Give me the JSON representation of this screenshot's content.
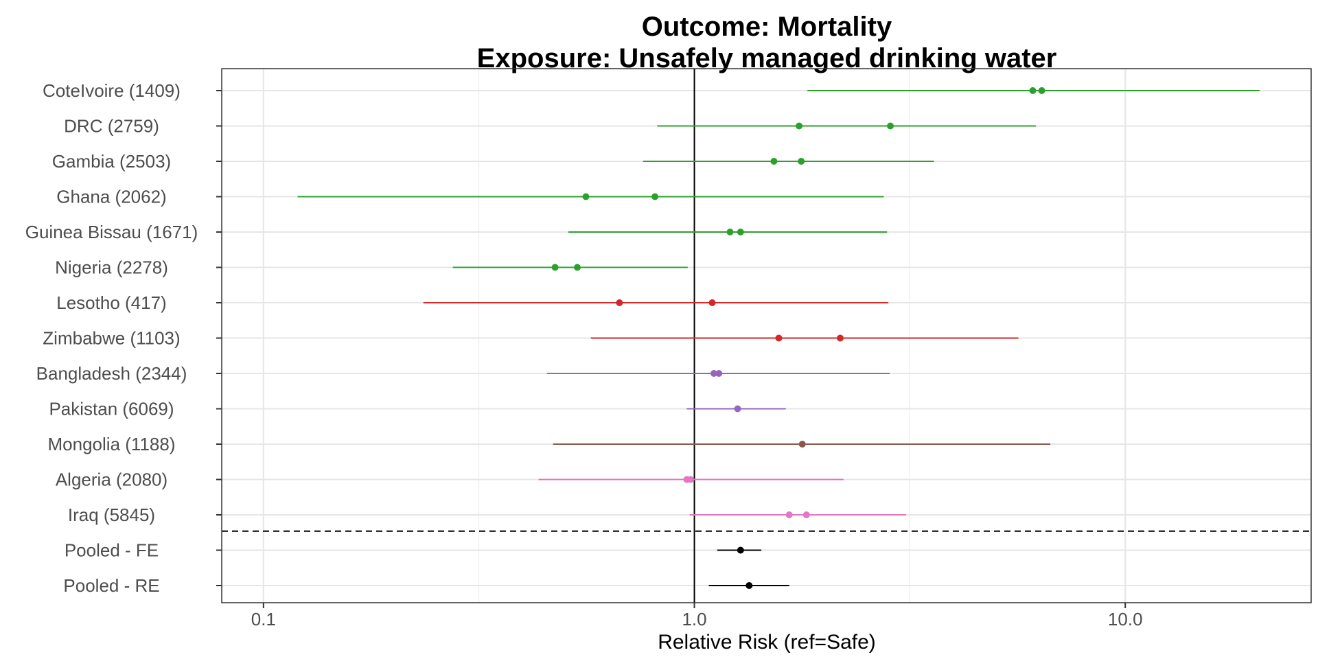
{
  "chart_data": {
    "type": "forest",
    "title": "Outcome: Mortality",
    "subtitle": "Exposure: Unsafely managed drinking water",
    "xlabel": "Relative Risk (ref=Safe)",
    "ylabel": "",
    "x_scale": "log10",
    "xlim": [
      0.08,
      27
    ],
    "x_ticks": [
      {
        "value": 0.1,
        "label": "0.1"
      },
      {
        "value": 1.0,
        "label": "1.0"
      },
      {
        "value": 10.0,
        "label": "10.0"
      }
    ],
    "x_minor_gridlines": [
      0.316,
      3.16
    ],
    "reference_line": 1.0,
    "grid": true,
    "legend": "none",
    "rows": [
      {
        "label": "CoteIvoire (1409)",
        "color": "#2ca02c",
        "points": [
          6.1,
          6.4
        ],
        "ci": [
          1.83,
          20.5
        ]
      },
      {
        "label": "DRC (2759)",
        "color": "#2ca02c",
        "points": [
          1.75,
          2.85
        ],
        "ci": [
          0.82,
          6.2
        ]
      },
      {
        "label": "Gambia (2503)",
        "color": "#2ca02c",
        "points": [
          1.53,
          1.77
        ],
        "ci": [
          0.76,
          3.6
        ]
      },
      {
        "label": "Ghana (2062)",
        "color": "#2ca02c",
        "points": [
          0.56,
          0.81
        ],
        "ci": [
          0.12,
          2.75
        ]
      },
      {
        "label": "Guinea Bissau (1671)",
        "color": "#2ca02c",
        "points": [
          1.21,
          1.28
        ],
        "ci": [
          0.51,
          2.8
        ]
      },
      {
        "label": "Nigeria (2278)",
        "color": "#2ca02c",
        "points": [
          0.475,
          0.535
        ],
        "ci": [
          0.275,
          0.965
        ]
      },
      {
        "label": "Lesotho (417)",
        "color": "#d62728",
        "points": [
          0.67,
          1.1
        ],
        "ci": [
          0.235,
          2.82
        ]
      },
      {
        "label": "Zimbabwe (1103)",
        "color": "#d62728",
        "points": [
          1.57,
          2.18
        ],
        "ci": [
          0.575,
          5.65
        ]
      },
      {
        "label": "Bangladesh (2344)",
        "color": "#9467bd",
        "points": [
          1.11,
          1.14
        ],
        "ci": [
          0.455,
          2.84
        ]
      },
      {
        "label": "Pakistan (6069)",
        "color": "#9467bd",
        "points": [
          1.26
        ],
        "ci": [
          0.96,
          1.63
        ]
      },
      {
        "label": "Mongolia (1188)",
        "color": "#8c564b",
        "points": [
          1.78
        ],
        "ci": [
          0.47,
          6.7
        ]
      },
      {
        "label": "Algeria (2080)",
        "color": "#e377c2",
        "points": [
          0.96,
          0.98
        ],
        "ci": [
          0.435,
          2.22
        ]
      },
      {
        "label": "Iraq (5845)",
        "color": "#e377c2",
        "points": [
          1.66,
          1.82
        ],
        "ci": [
          0.975,
          3.1
        ]
      },
      {
        "label": "Pooled - FE",
        "color": "#000000",
        "points": [
          1.28
        ],
        "ci": [
          1.13,
          1.43
        ]
      },
      {
        "label": "Pooled - RE",
        "color": "#000000",
        "points": [
          1.34
        ],
        "ci": [
          1.08,
          1.66
        ]
      }
    ],
    "separator_after_row": 12
  }
}
